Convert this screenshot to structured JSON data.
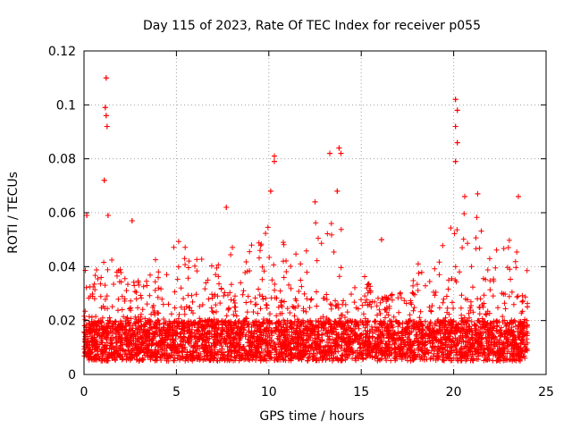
{
  "chart_data": {
    "type": "scatter",
    "title": "Day 115 of 2023, Rate Of TEC Index for receiver p055",
    "xlabel": "GPS time / hours",
    "ylabel": "ROTI / TECUs",
    "xlim": [
      0,
      25
    ],
    "ylim": [
      0,
      0.12
    ],
    "xticks": [
      0,
      5,
      10,
      15,
      20,
      25
    ],
    "xtick_labels": [
      "0",
      "5",
      "10",
      "15",
      "20",
      "25"
    ],
    "yticks": [
      0,
      0.02,
      0.04,
      0.06,
      0.08,
      0.1,
      0.12
    ],
    "ytick_labels": [
      "0",
      "0.02",
      "0.04",
      "0.06",
      "0.08",
      "0.1",
      "0.12"
    ],
    "grid": true,
    "marker": "+",
    "color": "#ff0000",
    "series": [
      {
        "name": "p055 ROTI",
        "notable_points": [
          {
            "x": 1.2,
            "y": 0.11
          },
          {
            "x": 1.15,
            "y": 0.099
          },
          {
            "x": 1.2,
            "y": 0.096
          },
          {
            "x": 1.25,
            "y": 0.092
          },
          {
            "x": 1.1,
            "y": 0.072
          },
          {
            "x": 0.15,
            "y": 0.059
          },
          {
            "x": 1.3,
            "y": 0.059
          },
          {
            "x": 2.6,
            "y": 0.057
          },
          {
            "x": 7.7,
            "y": 0.062
          },
          {
            "x": 10.3,
            "y": 0.081
          },
          {
            "x": 10.3,
            "y": 0.079
          },
          {
            "x": 10.1,
            "y": 0.068
          },
          {
            "x": 12.5,
            "y": 0.064
          },
          {
            "x": 13.3,
            "y": 0.082
          },
          {
            "x": 13.8,
            "y": 0.084
          },
          {
            "x": 13.9,
            "y": 0.082
          },
          {
            "x": 13.7,
            "y": 0.068
          },
          {
            "x": 16.1,
            "y": 0.05
          },
          {
            "x": 20.1,
            "y": 0.102
          },
          {
            "x": 20.2,
            "y": 0.098
          },
          {
            "x": 20.1,
            "y": 0.092
          },
          {
            "x": 20.2,
            "y": 0.086
          },
          {
            "x": 20.1,
            "y": 0.079
          },
          {
            "x": 20.6,
            "y": 0.066
          },
          {
            "x": 21.3,
            "y": 0.067
          },
          {
            "x": 23.5,
            "y": 0.066
          }
        ],
        "band": {
          "typical_min": 0.005,
          "typical_max": 0.03,
          "hours": [
            0,
            24
          ]
        }
      }
    ]
  }
}
